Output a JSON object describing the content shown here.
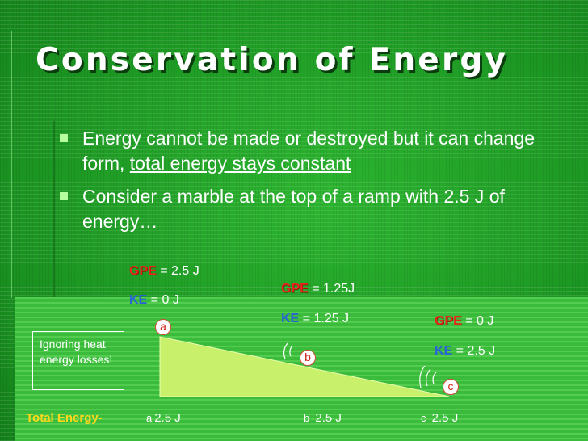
{
  "slide": {
    "title": "Conservation of Energy",
    "bullets": [
      {
        "text_before": "Energy cannot be made or destroyed but it can change form, ",
        "underlined": "total energy stays constant"
      },
      {
        "text_before": "Consider a marble at the top of a ramp with 2.5 J of energy…",
        "underlined": ""
      }
    ]
  },
  "points": [
    {
      "marker": "a",
      "gpe_label": "GPE",
      "gpe_value": " = 2.5 J",
      "ke_label": "KE",
      "ke_value": " = 0 J",
      "total": "2.5 J"
    },
    {
      "marker": "b",
      "gpe_label": "GPE",
      "gpe_value": " = 1.25J",
      "ke_label": "KE",
      "ke_value": " = 1.25 J",
      "total": "2.5 J"
    },
    {
      "marker": "c",
      "gpe_label": "GPE",
      "gpe_value": " = 0 J",
      "ke_label": "KE",
      "ke_value": " = 2.5 J",
      "total": "2.5 J"
    }
  ],
  "note": "Ignoring heat energy losses!",
  "total_energy_label": "Total Energy-",
  "colors": {
    "background": "#1e9a24",
    "gpe": "#e8261b",
    "ke": "#2a63d8",
    "ramp": "#c8f06a",
    "total_label": "#ffd81a"
  }
}
